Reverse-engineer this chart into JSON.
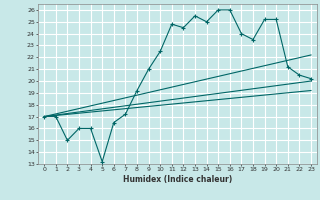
{
  "title": "",
  "xlabel": "Humidex (Indice chaleur)",
  "background_color": "#c8e8e8",
  "grid_color": "#ffffff",
  "line_color": "#006666",
  "xlim": [
    -0.5,
    23.5
  ],
  "ylim": [
    13,
    26.5
  ],
  "yticks": [
    13,
    14,
    15,
    16,
    17,
    18,
    19,
    20,
    21,
    22,
    23,
    24,
    25,
    26
  ],
  "xticks": [
    0,
    1,
    2,
    3,
    4,
    5,
    6,
    7,
    8,
    9,
    10,
    11,
    12,
    13,
    14,
    15,
    16,
    17,
    18,
    19,
    20,
    21,
    22,
    23
  ],
  "series": [
    {
      "x": [
        0,
        1,
        2,
        3,
        4,
        5,
        6,
        7,
        8,
        9,
        10,
        11,
        12,
        13,
        14,
        15,
        16,
        17,
        18,
        19,
        20,
        21,
        22,
        23
      ],
      "y": [
        17,
        17,
        15,
        16,
        16,
        13.2,
        16.5,
        17.2,
        19.2,
        21,
        22.5,
        24.8,
        24.5,
        25.5,
        25,
        26,
        26,
        24,
        23.5,
        25.2,
        25.2,
        21.2,
        20.5,
        20.2
      ],
      "marker": "+"
    },
    {
      "x": [
        0,
        23
      ],
      "y": [
        17,
        22.2
      ],
      "marker": null
    },
    {
      "x": [
        0,
        23
      ],
      "y": [
        17,
        20.0
      ],
      "marker": null
    },
    {
      "x": [
        0,
        23
      ],
      "y": [
        17,
        19.2
      ],
      "marker": null
    }
  ]
}
